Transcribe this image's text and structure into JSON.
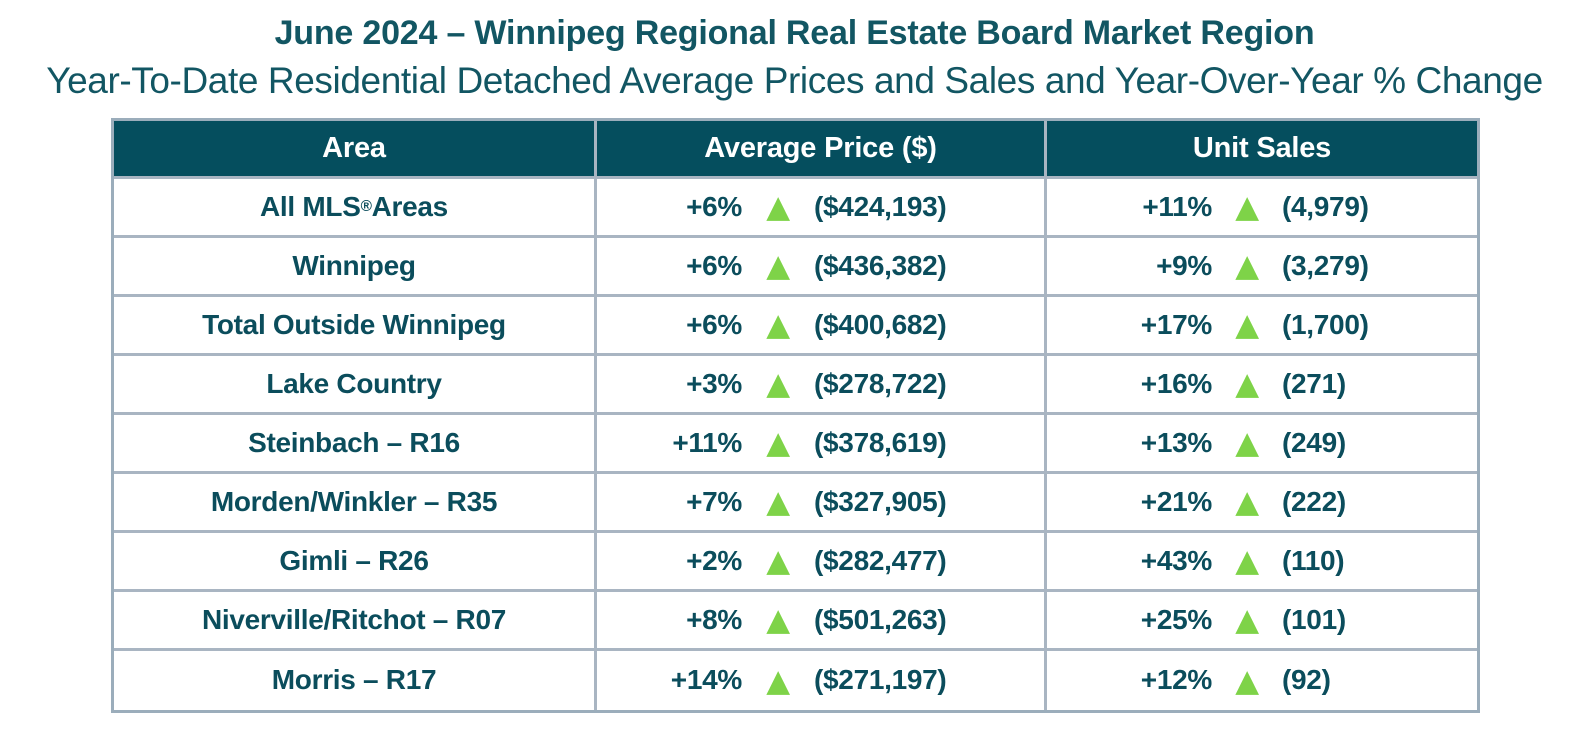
{
  "title": "June 2024 – Winnipeg Regional Real Estate Board Market Region",
  "subtitle": "Year-To-Date Residential Detached Average Prices and Sales and Year-Over-Year % Change",
  "colors": {
    "header_bg": "#054e5e",
    "heading_text": "#125663",
    "cell_text": "#0b4d5c",
    "up_arrow": "#7ed348",
    "border": "#a9b5c2"
  },
  "table": {
    "up_arrow": "▲",
    "columns": [
      "Area",
      "Average Price ($)",
      "Unit Sales"
    ],
    "rows": [
      {
        "area_pre": "All MLS",
        "area_sup": "®",
        "area_post": " Areas",
        "price_pct": "+6%",
        "price_val": "($424,193)",
        "sales_pct": "+11%",
        "sales_val": "(4,979)"
      },
      {
        "area_pre": "Winnipeg",
        "area_sup": "",
        "area_post": "",
        "price_pct": "+6%",
        "price_val": "($436,382)",
        "sales_pct": "+9%",
        "sales_val": "(3,279)"
      },
      {
        "area_pre": "Total Outside Winnipeg",
        "area_sup": "",
        "area_post": "",
        "price_pct": "+6%",
        "price_val": "($400,682)",
        "sales_pct": "+17%",
        "sales_val": "(1,700)"
      },
      {
        "area_pre": "Lake Country",
        "area_sup": "",
        "area_post": "",
        "price_pct": "+3%",
        "price_val": "($278,722)",
        "sales_pct": "+16%",
        "sales_val": "(271)"
      },
      {
        "area_pre": "Steinbach – R16",
        "area_sup": "",
        "area_post": "",
        "price_pct": "+11%",
        "price_val": "($378,619)",
        "sales_pct": "+13%",
        "sales_val": "(249)"
      },
      {
        "area_pre": "Morden/Winkler – R35",
        "area_sup": "",
        "area_post": "",
        "price_pct": "+7%",
        "price_val": "($327,905)",
        "sales_pct": "+21%",
        "sales_val": "(222)"
      },
      {
        "area_pre": "Gimli – R26",
        "area_sup": "",
        "area_post": "",
        "price_pct": "+2%",
        "price_val": "($282,477)",
        "sales_pct": "+43%",
        "sales_val": "(110)"
      },
      {
        "area_pre": "Niverville/Ritchot – R07",
        "area_sup": "",
        "area_post": "",
        "price_pct": "+8%",
        "price_val": "($501,263)",
        "sales_pct": "+25%",
        "sales_val": "(101)"
      },
      {
        "area_pre": "Morris – R17",
        "area_sup": "",
        "area_post": "",
        "price_pct": "+14%",
        "price_val": "($271,197)",
        "sales_pct": "+12%",
        "sales_val": "(92)"
      }
    ]
  },
  "chart_data": {
    "type": "table",
    "title": "June 2024 – Winnipeg Regional Real Estate Board Market Region",
    "subtitle": "Year-To-Date Residential Detached Average Prices and Sales and Year-Over-Year % Change",
    "columns": [
      "Area",
      "Average Price ($)",
      "Unit Sales"
    ],
    "rows": [
      {
        "area": "All MLS® Areas",
        "avg_price_yoy_pct": 6,
        "avg_price": 424193,
        "price_direction": "up",
        "unit_sales_yoy_pct": 11,
        "unit_sales": 4979,
        "sales_direction": "up"
      },
      {
        "area": "Winnipeg",
        "avg_price_yoy_pct": 6,
        "avg_price": 436382,
        "price_direction": "up",
        "unit_sales_yoy_pct": 9,
        "unit_sales": 3279,
        "sales_direction": "up"
      },
      {
        "area": "Total Outside Winnipeg",
        "avg_price_yoy_pct": 6,
        "avg_price": 400682,
        "price_direction": "up",
        "unit_sales_yoy_pct": 17,
        "unit_sales": 1700,
        "sales_direction": "up"
      },
      {
        "area": "Lake Country",
        "avg_price_yoy_pct": 3,
        "avg_price": 278722,
        "price_direction": "up",
        "unit_sales_yoy_pct": 16,
        "unit_sales": 271,
        "sales_direction": "up"
      },
      {
        "area": "Steinbach – R16",
        "avg_price_yoy_pct": 11,
        "avg_price": 378619,
        "price_direction": "up",
        "unit_sales_yoy_pct": 13,
        "unit_sales": 249,
        "sales_direction": "up"
      },
      {
        "area": "Morden/Winkler – R35",
        "avg_price_yoy_pct": 7,
        "avg_price": 327905,
        "price_direction": "up",
        "unit_sales_yoy_pct": 21,
        "unit_sales": 222,
        "sales_direction": "up"
      },
      {
        "area": "Gimli – R26",
        "avg_price_yoy_pct": 2,
        "avg_price": 282477,
        "price_direction": "up",
        "unit_sales_yoy_pct": 43,
        "unit_sales": 110,
        "sales_direction": "up"
      },
      {
        "area": "Niverville/Ritchot – R07",
        "avg_price_yoy_pct": 8,
        "avg_price": 501263,
        "price_direction": "up",
        "unit_sales_yoy_pct": 25,
        "unit_sales": 101,
        "sales_direction": "up"
      },
      {
        "area": "Morris – R17",
        "avg_price_yoy_pct": 14,
        "avg_price": 271197,
        "price_direction": "up",
        "unit_sales_yoy_pct": 12,
        "unit_sales": 92,
        "sales_direction": "up"
      }
    ]
  }
}
